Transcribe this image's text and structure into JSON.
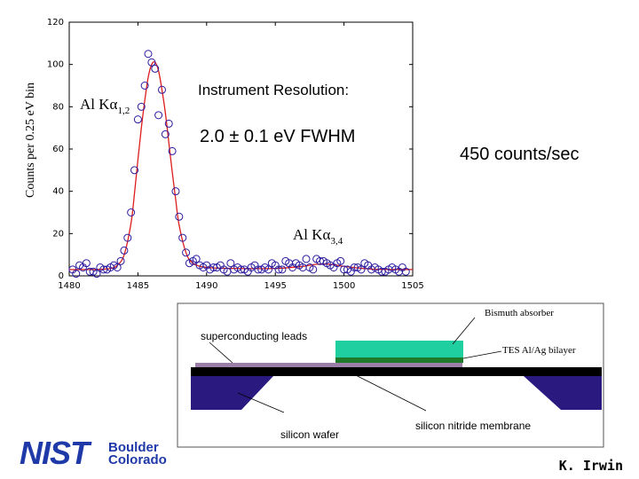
{
  "chart_data": {
    "type": "scatter",
    "title": "",
    "xlabel": "",
    "ylabel": "Counts per 0.25 eV bin",
    "xlim": [
      1480,
      1505
    ],
    "ylim": [
      0,
      120
    ],
    "x_ticks": [
      1480,
      1485,
      1490,
      1495,
      1500,
      1505
    ],
    "y_ticks": [
      0,
      20,
      40,
      60,
      80,
      100,
      120
    ],
    "x_tick_labels": [
      "1480",
      "1485",
      "1490",
      "1495",
      "1500",
      "1505"
    ],
    "y_tick_labels": [
      "0",
      "20",
      "40",
      "60",
      "80",
      "100",
      "120"
    ],
    "grid": false,
    "series": [
      {
        "marker": "open-circle",
        "color": "#2a1a9e",
        "x": [
          1480.25,
          1480.5,
          1480.75,
          1481.0,
          1481.25,
          1481.5,
          1481.75,
          1482.0,
          1482.25,
          1482.5,
          1482.75,
          1483.0,
          1483.25,
          1483.5,
          1483.75,
          1484.0,
          1484.25,
          1484.5,
          1484.75,
          1485.0,
          1485.25,
          1485.5,
          1485.75,
          1486.0,
          1486.25,
          1486.5,
          1486.75,
          1487.0,
          1487.25,
          1487.5,
          1487.75,
          1488.0,
          1488.25,
          1488.5,
          1488.75,
          1489.0,
          1489.25,
          1489.5,
          1489.75,
          1490.0,
          1490.25,
          1490.5,
          1490.75,
          1491.0,
          1491.25,
          1491.5,
          1491.75,
          1492.0,
          1492.25,
          1492.5,
          1492.75,
          1493.0,
          1493.25,
          1493.5,
          1493.75,
          1494.0,
          1494.25,
          1494.5,
          1494.75,
          1495.0,
          1495.25,
          1495.5,
          1495.75,
          1496.0,
          1496.25,
          1496.5,
          1496.75,
          1497.0,
          1497.25,
          1497.5,
          1497.75,
          1498.0,
          1498.25,
          1498.5,
          1498.75,
          1499.0,
          1499.25,
          1499.5,
          1499.75,
          1500.0,
          1500.25,
          1500.5,
          1500.75,
          1501.0,
          1501.25,
          1501.5,
          1501.75,
          1502.0,
          1502.25,
          1502.5,
          1502.75,
          1503.0,
          1503.25,
          1503.5,
          1503.75,
          1504.0,
          1504.25,
          1504.5
        ],
        "y": [
          3,
          1,
          5,
          4,
          6,
          2,
          2,
          1,
          4,
          3,
          3,
          4,
          5,
          4,
          7,
          12,
          18,
          30,
          50,
          74,
          80,
          90,
          105,
          101,
          98,
          76,
          88,
          67,
          72,
          59,
          40,
          28,
          18,
          11,
          6,
          7,
          8,
          5,
          4,
          5,
          3,
          4,
          4,
          5,
          3,
          2,
          6,
          3,
          4,
          3,
          3,
          2,
          4,
          5,
          3,
          3,
          4,
          3,
          6,
          5,
          3,
          3,
          7,
          6,
          4,
          6,
          5,
          4,
          8,
          4,
          3,
          8,
          7,
          7,
          6,
          5,
          4,
          6,
          7,
          3,
          3,
          2,
          4,
          4,
          3,
          6,
          5,
          3,
          4,
          3,
          2,
          2,
          3,
          4,
          3,
          2,
          4,
          2
        ]
      }
    ],
    "fit_curve": {
      "color": "#dd1c1c",
      "x": [
        1480,
        1481,
        1482,
        1483,
        1483.5,
        1484,
        1484.5,
        1484.75,
        1485,
        1485.25,
        1485.5,
        1485.75,
        1486,
        1486.25,
        1486.5,
        1486.75,
        1487,
        1487.25,
        1487.5,
        1487.75,
        1488,
        1488.5,
        1489,
        1490,
        1492,
        1495,
        1497,
        1498,
        1499,
        1500,
        1502,
        1505
      ],
      "y": [
        3,
        3,
        3,
        3.5,
        5,
        10,
        25,
        39,
        55,
        70,
        83,
        94,
        100,
        101,
        97,
        88,
        77,
        63,
        49,
        36,
        24,
        11,
        6,
        4,
        3.5,
        3.5,
        4.5,
        5.5,
        5.5,
        4.5,
        3.2,
        3
      ]
    },
    "annotations": [
      {
        "text": "Al Kα1,2",
        "main": "Al K",
        "greek": "α",
        "sub": "1,2"
      },
      {
        "text": "Al Kα3,4",
        "main": "Al K",
        "greek": "α",
        "sub": "3,4"
      },
      {
        "text": "Instrument Resolution:"
      },
      {
        "text": "2.0 ± 0.1 eV FWHM"
      },
      {
        "text": "450 counts/sec"
      }
    ]
  },
  "diagram": {
    "labels": {
      "bismuth": "Bismuth absorber",
      "leads": "superconducting leads",
      "bilayer": "TES Al/Ag bilayer",
      "wafer": "silicon wafer",
      "membrane": "silicon nitride membrane"
    },
    "colors": {
      "absorber": "#1fcfa0",
      "bilayer": "#1f7a2a",
      "leads": "#9b7fa8",
      "membrane": "#000000",
      "wafer": "#2a1a80"
    }
  },
  "logo": {
    "text": "NIST",
    "line1": "Boulder",
    "line2": "Colorado",
    "color": "#1f3aa8"
  },
  "credit": "K. Irwin"
}
